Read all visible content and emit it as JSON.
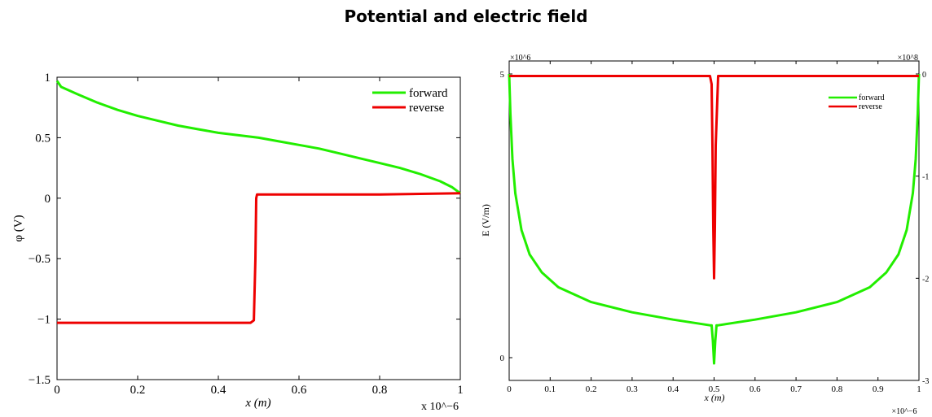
{
  "title": "Potential and electric field",
  "colors": {
    "forward": "#22ee00",
    "reverse": "#ee0000"
  },
  "chart_data": [
    {
      "type": "line",
      "title": "",
      "xlabel": "x (m)",
      "ylabel": "φ (V)",
      "x_multiplier": "x 10^−6",
      "xlim": [
        0,
        1
      ],
      "ylim": [
        -1.5,
        1
      ],
      "x_ticks": [
        "0",
        "0.2",
        "0.4",
        "0.6",
        "0.8",
        "1"
      ],
      "y_ticks": [
        "1",
        "0.5",
        "0",
        "−0.5",
        "−1",
        "−1.5"
      ],
      "legend": {
        "position": "top-right",
        "entries": [
          "forward",
          "reverse"
        ]
      },
      "grid": false,
      "series": [
        {
          "name": "forward",
          "color": "#22ee00",
          "x": [
            0,
            0.01,
            0.05,
            0.1,
            0.15,
            0.2,
            0.25,
            0.3,
            0.35,
            0.4,
            0.45,
            0.5,
            0.55,
            0.6,
            0.65,
            0.7,
            0.75,
            0.8,
            0.85,
            0.9,
            0.95,
            0.98,
            1.0
          ],
          "y": [
            0.97,
            0.92,
            0.86,
            0.79,
            0.73,
            0.68,
            0.64,
            0.6,
            0.57,
            0.54,
            0.52,
            0.5,
            0.47,
            0.44,
            0.41,
            0.37,
            0.33,
            0.29,
            0.25,
            0.2,
            0.14,
            0.09,
            0.04
          ]
        },
        {
          "name": "reverse",
          "color": "#ee0000",
          "x": [
            0,
            0.2,
            0.4,
            0.48,
            0.488,
            0.492,
            0.494,
            0.496,
            0.5,
            0.6,
            0.8,
            1.0
          ],
          "y": [
            -1.03,
            -1.03,
            -1.03,
            -1.03,
            -1.01,
            -0.5,
            0.0,
            0.03,
            0.03,
            0.03,
            0.03,
            0.04
          ]
        }
      ]
    },
    {
      "type": "line",
      "title": "",
      "xlabel": "x (m)",
      "ylabel": "E (V/m)",
      "x_multiplier": "×10^−6",
      "left_multiplier": "×10^6",
      "right_multiplier": "×10^8",
      "xlim": [
        0,
        1
      ],
      "ylim_left": [
        -0.7,
        5
      ],
      "ylim_right": [
        -3,
        0.15
      ],
      "x_ticks": [
        "0",
        "0.1",
        "0.2",
        "0.3",
        "0.4",
        "0.5",
        "0.6",
        "0.7",
        "0.8",
        "0.9",
        "1"
      ],
      "y_ticks_left": [
        "5",
        "0"
      ],
      "y_ticks_right": [
        "0",
        "-1",
        "-2",
        "-3"
      ],
      "legend": {
        "position": "top-right",
        "entries": [
          "forward",
          "reverse"
        ]
      },
      "grid": false,
      "series": [
        {
          "name": "forward",
          "axis": "left",
          "color": "#22ee00",
          "x": [
            0,
            0.003,
            0.008,
            0.015,
            0.03,
            0.05,
            0.08,
            0.12,
            0.2,
            0.3,
            0.4,
            0.49,
            0.494,
            0.497,
            0.5,
            0.503,
            0.506,
            0.51,
            0.6,
            0.7,
            0.8,
            0.88,
            0.92,
            0.95,
            0.97,
            0.985,
            0.992,
            0.997,
            1.0
          ],
          "y": [
            5,
            4.3,
            3.5,
            2.9,
            2.25,
            1.82,
            1.5,
            1.24,
            0.98,
            0.8,
            0.67,
            0.57,
            0.57,
            0.3,
            -0.1,
            0.3,
            0.57,
            0.57,
            0.67,
            0.8,
            0.98,
            1.24,
            1.5,
            1.82,
            2.25,
            2.9,
            3.5,
            4.3,
            5
          ]
        },
        {
          "name": "reverse",
          "axis": "right",
          "color": "#ee0000",
          "x": [
            0,
            0.48,
            0.49,
            0.494,
            0.496,
            0.498,
            0.5,
            0.502,
            0.504,
            0.51,
            0.52,
            1.0
          ],
          "y": [
            -0.02,
            -0.02,
            -0.02,
            -0.1,
            -0.7,
            -1.5,
            -2.0,
            -1.5,
            -0.7,
            -0.02,
            -0.02,
            -0.02
          ]
        }
      ]
    }
  ]
}
